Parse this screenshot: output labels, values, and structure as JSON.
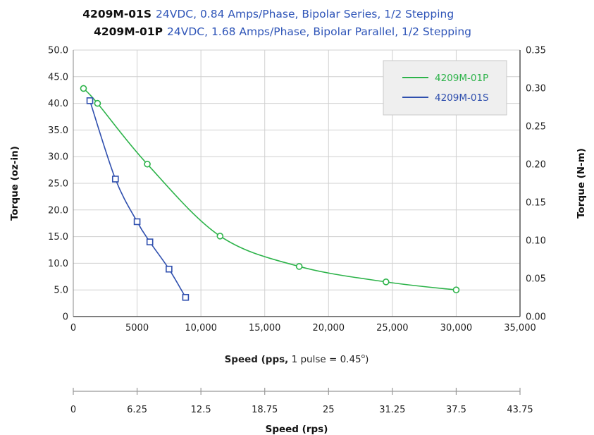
{
  "title_lines": [
    {
      "model": "4209M-01S",
      "desc": "24VDC, 0.84 Amps/Phase, Bipolar Series, 1/2 Stepping"
    },
    {
      "model": "4209M-01P",
      "desc": "24VDC, 1.68 Amps/Phase, Bipolar Parallel, 1/2 Stepping"
    }
  ],
  "axes": {
    "y_left_label": "Torque (oz-in)",
    "y_right_label": "Torque (N-m)",
    "x_label_bold": "Speed (pps,",
    "x_label_rest": " 1 pulse = 0.45",
    "x_label_deg": "o",
    "x_label_close": ")",
    "x2_label": "Speed (rps)"
  },
  "chart_data": {
    "type": "line",
    "xlim": [
      0,
      35000
    ],
    "ylim": [
      0,
      50
    ],
    "y2lim": [
      0,
      0.35
    ],
    "x2lim": [
      0,
      43.75
    ],
    "grid": true,
    "legend_position": "top-right",
    "x_ticks": [
      "0",
      "5000",
      "10,000",
      "15,000",
      "20,000",
      "25,000",
      "30,000",
      "35,000"
    ],
    "y_ticks": [
      "0",
      "5.0",
      "10.0",
      "15.0",
      "20.0",
      "25.0",
      "30.0",
      "35.0",
      "40.0",
      "45.0",
      "50.0"
    ],
    "y2_ticks": [
      "0.00",
      "0.05",
      "0.10",
      "0.15",
      "0.20",
      "0.25",
      "0.30",
      "0.35"
    ],
    "x2_ticks": [
      "0",
      "6.25",
      "12.5",
      "18.75",
      "25",
      "31.25",
      "37.5",
      "43.75"
    ],
    "series": [
      {
        "name": "4209M-01P",
        "color": "#2db34a",
        "marker": "circle",
        "x": [
          800,
          1900,
          5800,
          11500,
          17700,
          24500,
          30000
        ],
        "y": [
          42.8,
          40.0,
          28.6,
          15.1,
          9.4,
          6.5,
          5.0
        ]
      },
      {
        "name": "4209M-01S",
        "color": "#2f4fae",
        "marker": "square",
        "x": [
          1300,
          3300,
          5000,
          6000,
          7500,
          8800
        ],
        "y": [
          40.5,
          25.8,
          17.8,
          14.0,
          8.9,
          3.6
        ]
      }
    ]
  }
}
